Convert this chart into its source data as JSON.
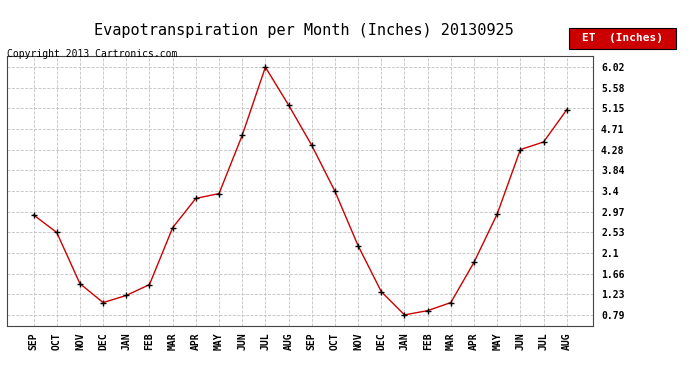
{
  "title": "Evapotranspiration per Month (Inches) 20130925",
  "copyright_text": "Copyright 2013 Cartronics.com",
  "legend_label": "ET  (Inches)",
  "legend_bg": "#cc0000",
  "legend_text_color": "#ffffff",
  "x_labels": [
    "SEP",
    "OCT",
    "NOV",
    "DEC",
    "JAN",
    "FEB",
    "MAR",
    "APR",
    "MAY",
    "JUN",
    "JUL",
    "AUG",
    "SEP",
    "OCT",
    "NOV",
    "DEC",
    "JAN",
    "FEB",
    "MAR",
    "APR",
    "MAY",
    "JUN",
    "JUL",
    "AUG"
  ],
  "y_values": [
    2.9,
    2.53,
    1.45,
    1.05,
    1.2,
    1.43,
    2.63,
    3.25,
    3.35,
    4.58,
    6.02,
    5.22,
    4.37,
    3.4,
    2.25,
    1.28,
    0.79,
    0.88,
    1.05,
    1.9,
    2.92,
    4.28,
    4.44,
    5.12
  ],
  "line_color": "#cc0000",
  "marker": "+",
  "marker_size": 5,
  "marker_color": "#000000",
  "bg_color": "#ffffff",
  "grid_color": "#bbbbbb",
  "yticks": [
    0.79,
    1.23,
    1.66,
    2.1,
    2.53,
    2.97,
    3.4,
    3.84,
    4.28,
    4.71,
    5.15,
    5.58,
    6.02
  ],
  "ylim": [
    0.55,
    6.25
  ],
  "title_fontsize": 11,
  "copyright_fontsize": 7,
  "tick_fontsize": 7,
  "legend_fontsize": 8
}
